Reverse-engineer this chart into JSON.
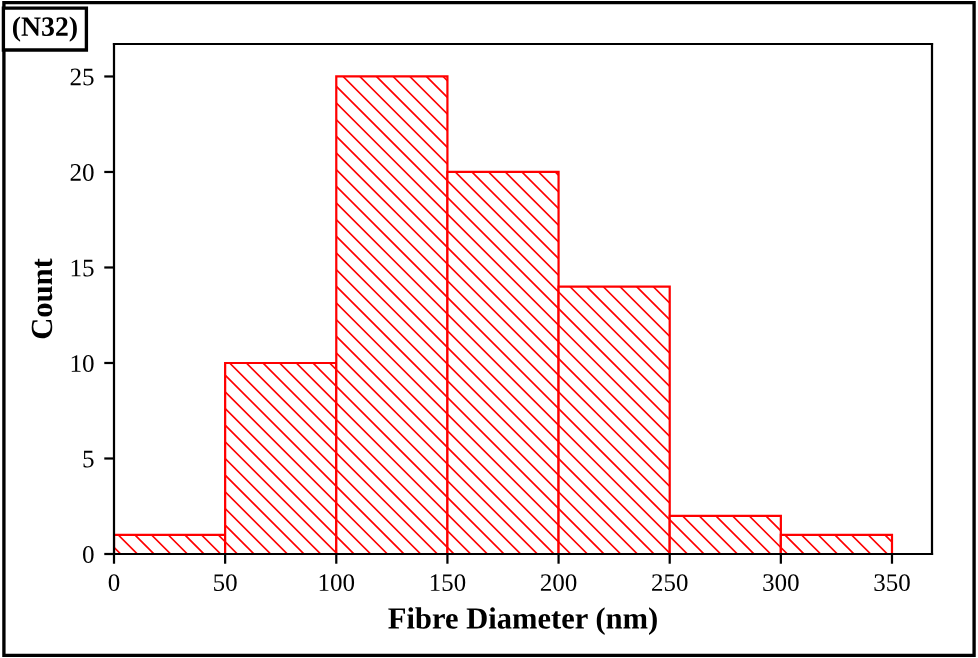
{
  "chart_data": {
    "type": "histogram",
    "title": "(N32)",
    "xlabel": "Fibre Diameter (nm)",
    "ylabel": "Count",
    "bins": [
      0,
      50,
      100,
      150,
      200,
      250,
      300,
      350
    ],
    "values": [
      1,
      10,
      25,
      20,
      14,
      2,
      1
    ],
    "color": "#ff0000",
    "xlim": [
      0,
      368
    ],
    "xticks": [
      0,
      50,
      100,
      150,
      200,
      250,
      300,
      350
    ],
    "ylim": [
      0,
      26.7
    ],
    "yticks": [
      0,
      5,
      10,
      15,
      20,
      25
    ],
    "grid": false,
    "legend": false
  }
}
